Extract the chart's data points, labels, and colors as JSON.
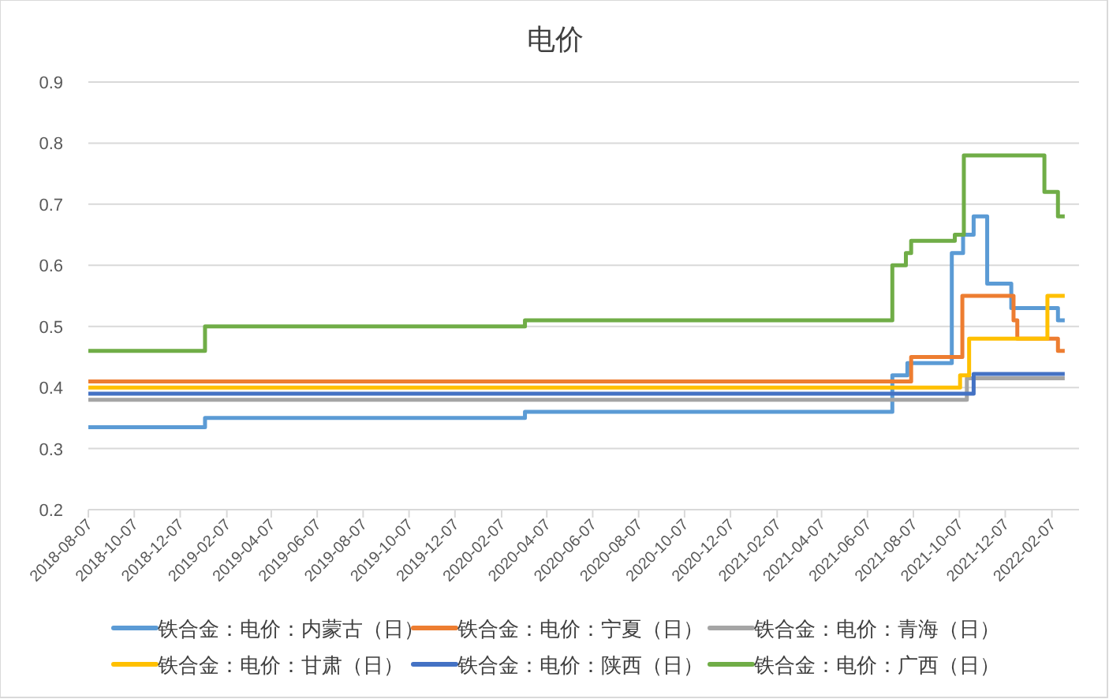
{
  "chart_data": {
    "type": "step",
    "title": "电价",
    "xlim": [
      "2018-08-07",
      "2022-03-15"
    ],
    "ylim": [
      0.2,
      0.9
    ],
    "xticks": [
      "2018-08-07",
      "2018-10-07",
      "2018-12-07",
      "2019-02-07",
      "2019-04-07",
      "2019-06-07",
      "2019-08-07",
      "2019-10-07",
      "2019-12-07",
      "2020-02-07",
      "2020-04-07",
      "2020-06-07",
      "2020-08-07",
      "2020-10-07",
      "2020-12-07",
      "2021-02-07",
      "2021-04-07",
      "2021-06-07",
      "2021-08-07",
      "2021-10-07",
      "2021-12-07",
      "2022-02-07"
    ],
    "yticks": [
      0.2,
      0.3,
      0.4,
      0.5,
      0.6,
      0.7,
      0.8,
      0.9
    ],
    "grid": "y",
    "legend": "bottom",
    "series": [
      {
        "name": "铁合金：电价：内蒙古（日）",
        "color": "#5b9bd5",
        "x": [
          "2018-08-07",
          "2019-01-09",
          "2020-03-09",
          "2021-07-10",
          "2021-07-30",
          "2021-09-27",
          "2021-10-12",
          "2021-10-26",
          "2021-11-13",
          "2021-12-15",
          "2022-02-15",
          "2022-02-24"
        ],
        "values": [
          0.335,
          0.35,
          0.36,
          0.42,
          0.44,
          0.62,
          0.65,
          0.68,
          0.57,
          0.53,
          0.51,
          0.51
        ]
      },
      {
        "name": "铁合金：电价：宁夏（日）",
        "color": "#ed7d31",
        "x": [
          "2018-08-07",
          "2021-08-04",
          "2021-10-11",
          "2021-12-18",
          "2021-12-23",
          "2022-02-15",
          "2022-02-24"
        ],
        "values": [
          0.41,
          0.45,
          0.55,
          0.51,
          0.48,
          0.46,
          0.46
        ]
      },
      {
        "name": "铁合金：电价：青海（日）",
        "color": "#a5a5a5",
        "x": [
          "2018-08-07",
          "2021-10-17",
          "2022-02-24"
        ],
        "values": [
          0.38,
          0.415,
          0.415
        ]
      },
      {
        "name": "铁合金：电价：甘肃（日）",
        "color": "#ffc000",
        "x": [
          "2018-08-07",
          "2021-10-08",
          "2021-10-20",
          "2022-02-01",
          "2022-02-24"
        ],
        "values": [
          0.4,
          0.42,
          0.48,
          0.55,
          0.55
        ]
      },
      {
        "name": "铁合金：电价：陕西（日）",
        "color": "#4472c4",
        "x": [
          "2018-08-07",
          "2021-10-26",
          "2022-02-24"
        ],
        "values": [
          0.39,
          0.422,
          0.422
        ]
      },
      {
        "name": "铁合金：电价：广西（日）",
        "color": "#70ad47",
        "x": [
          "2018-08-07",
          "2019-01-09",
          "2020-03-09",
          "2021-07-10",
          "2021-07-28",
          "2021-08-04",
          "2021-10-01",
          "2021-10-13",
          "2022-01-28",
          "2022-02-15",
          "2022-02-24"
        ],
        "values": [
          0.46,
          0.5,
          0.51,
          0.6,
          0.62,
          0.64,
          0.65,
          0.78,
          0.72,
          0.68,
          0.68
        ]
      }
    ]
  }
}
